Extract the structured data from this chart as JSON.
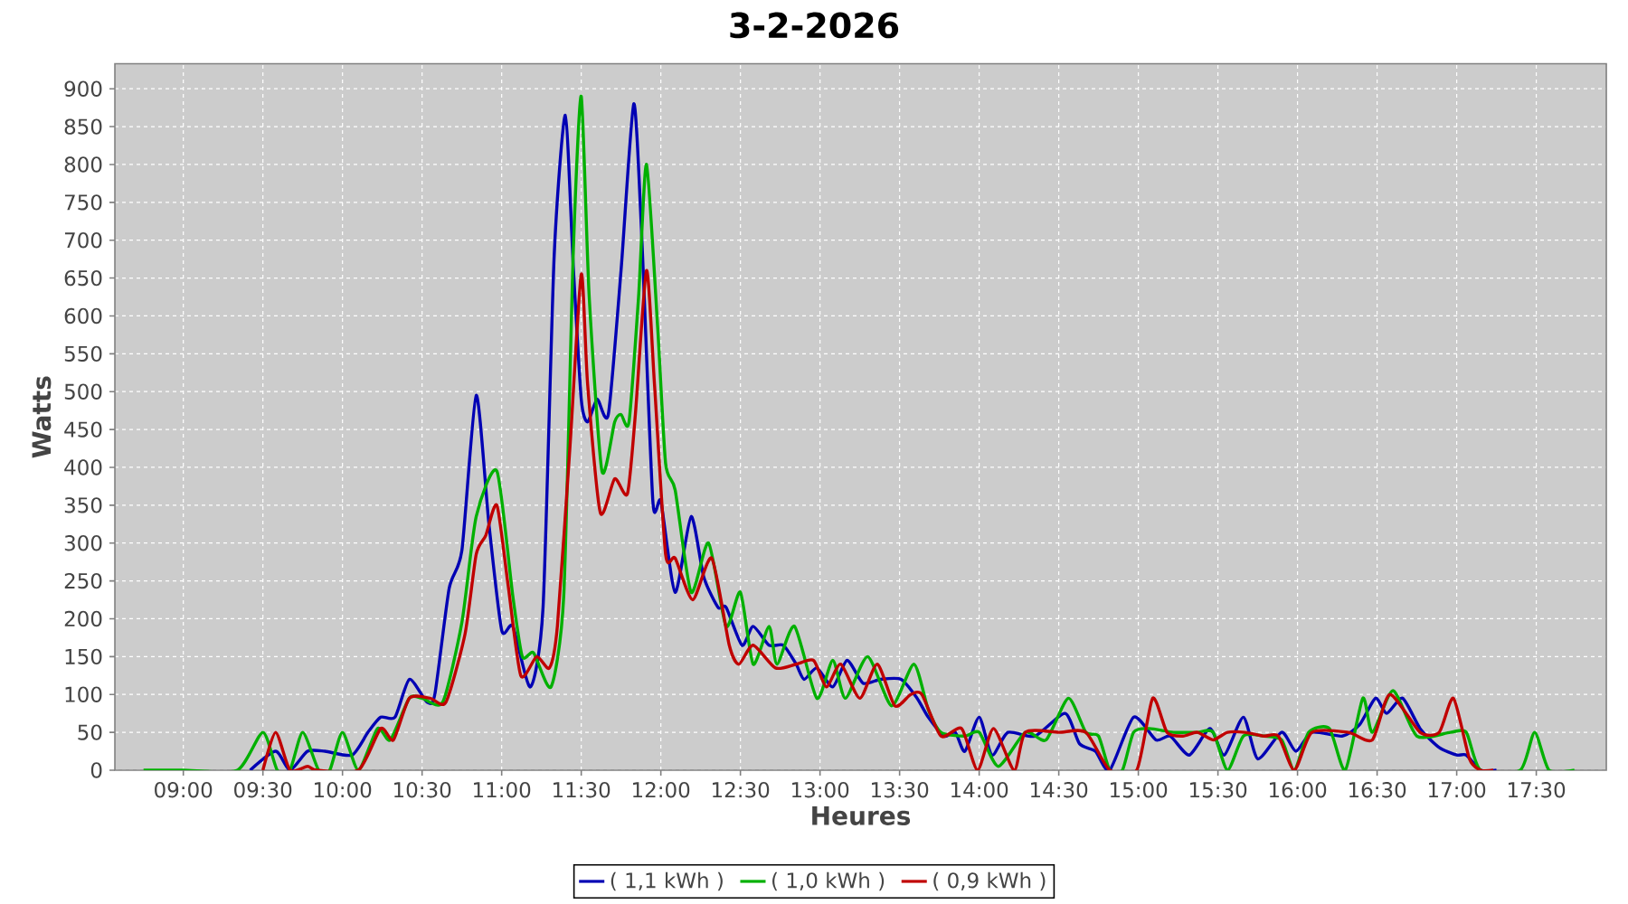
{
  "chart_data": {
    "type": "line",
    "title": "3-2-2026",
    "xlabel": "Heures",
    "ylabel": "Watts",
    "xlim": [
      8.57,
      17.94
    ],
    "ylim": [
      0,
      933
    ],
    "xticks": [
      {
        "value": 9,
        "label": "09:00"
      },
      {
        "value": 9.5,
        "label": "09:30"
      },
      {
        "value": 10,
        "label": "10:00"
      },
      {
        "value": 10.5,
        "label": "10:30"
      },
      {
        "value": 11,
        "label": "11:00"
      },
      {
        "value": 11.5,
        "label": "11:30"
      },
      {
        "value": 12,
        "label": "12:00"
      },
      {
        "value": 12.5,
        "label": "12:30"
      },
      {
        "value": 13,
        "label": "13:00"
      },
      {
        "value": 13.5,
        "label": "13:30"
      },
      {
        "value": 14,
        "label": "14:00"
      },
      {
        "value": 14.5,
        "label": "14:30"
      },
      {
        "value": 15,
        "label": "15:00"
      },
      {
        "value": 15.5,
        "label": "15:30"
      },
      {
        "value": 16,
        "label": "16:00"
      },
      {
        "value": 16.5,
        "label": "16:30"
      },
      {
        "value": 17,
        "label": "17:00"
      },
      {
        "value": 17.5,
        "label": "17:30"
      }
    ],
    "yticks": [
      0,
      50,
      100,
      150,
      200,
      250,
      300,
      350,
      400,
      450,
      500,
      550,
      600,
      650,
      700,
      750,
      800,
      850,
      900
    ],
    "grid": true,
    "legend": "bottom",
    "series": [
      {
        "name": "( 1,1 kWh )",
        "color": "#0000b4",
        "x": [
          9.42,
          9.58,
          9.67,
          9.78,
          9.89,
          10.06,
          10.16,
          10.24,
          10.33,
          10.42,
          10.53,
          10.58,
          10.67,
          10.75,
          10.84,
          10.92,
          11.0,
          11.07,
          11.18,
          11.26,
          11.33,
          11.4,
          11.45,
          11.5,
          11.54,
          11.6,
          11.67,
          11.75,
          11.83,
          11.88,
          11.95,
          12.0,
          12.09,
          12.19,
          12.27,
          12.36,
          12.41,
          12.51,
          12.58,
          12.68,
          12.77,
          12.85,
          12.9,
          12.98,
          13.08,
          13.17,
          13.27,
          13.38,
          13.51,
          13.61,
          13.68,
          13.78,
          13.85,
          13.91,
          14.0,
          14.08,
          14.18,
          14.35,
          14.54,
          14.63,
          14.73,
          14.82,
          14.97,
          15.11,
          15.2,
          15.32,
          15.45,
          15.54,
          15.66,
          15.75,
          15.9,
          15.99,
          16.09,
          16.28,
          16.39,
          16.49,
          16.56,
          16.66,
          16.77,
          16.89,
          17.0,
          17.06,
          17.15,
          17.25
        ],
        "values": [
          0,
          25,
          0,
          25,
          25,
          20,
          50,
          70,
          70,
          120,
          90,
          100,
          240,
          290,
          495,
          325,
          185,
          190,
          110,
          215,
          680,
          865,
          665,
          490,
          460,
          490,
          470,
          660,
          880,
          705,
          355,
          355,
          235,
          335,
          255,
          215,
          215,
          165,
          190,
          165,
          165,
          140,
          120,
          135,
          110,
          145,
          115,
          120,
          120,
          95,
          70,
          45,
          50,
          25,
          70,
          20,
          50,
          45,
          75,
          35,
          25,
          0,
          70,
          40,
          45,
          20,
          55,
          20,
          70,
          15,
          50,
          25,
          50,
          45,
          60,
          95,
          75,
          95,
          55,
          30,
          20,
          20,
          0,
          0
        ]
      },
      {
        "name": "( 1,0 kWh )",
        "color": "#00b000",
        "x": [
          8.75,
          9.0,
          9.34,
          9.5,
          9.59,
          9.67,
          9.75,
          9.85,
          9.92,
          10.0,
          10.1,
          10.22,
          10.3,
          10.42,
          10.5,
          10.63,
          10.75,
          10.84,
          10.97,
          11.07,
          11.13,
          11.2,
          11.31,
          11.39,
          11.45,
          11.5,
          11.55,
          11.63,
          11.71,
          11.75,
          11.8,
          11.86,
          11.91,
          11.98,
          12.03,
          12.09,
          12.19,
          12.3,
          12.41,
          12.5,
          12.58,
          12.68,
          12.73,
          12.84,
          12.98,
          13.08,
          13.16,
          13.3,
          13.45,
          13.59,
          13.68,
          13.76,
          13.91,
          14.0,
          14.12,
          14.29,
          14.42,
          14.56,
          14.67,
          14.75,
          14.82,
          14.9,
          14.97,
          15.07,
          15.22,
          15.37,
          15.47,
          15.56,
          15.66,
          15.79,
          15.9,
          15.98,
          16.07,
          16.2,
          16.3,
          16.41,
          16.47,
          16.6,
          16.75,
          16.96,
          17.06,
          17.15,
          17.4,
          17.49,
          17.58,
          17.74
        ],
        "values": [
          0,
          0,
          0,
          50,
          0,
          0,
          50,
          0,
          0,
          50,
          0,
          55,
          40,
          95,
          95,
          90,
          195,
          335,
          395,
          230,
          150,
          155,
          110,
          230,
          685,
          890,
          625,
          395,
          460,
          470,
          460,
          625,
          800,
          585,
          405,
          370,
          235,
          300,
          190,
          235,
          140,
          190,
          140,
          190,
          95,
          145,
          95,
          150,
          85,
          140,
          80,
          50,
          45,
          50,
          5,
          50,
          40,
          95,
          50,
          45,
          0,
          0,
          50,
          55,
          50,
          50,
          50,
          0,
          45,
          45,
          40,
          0,
          50,
          55,
          0,
          95,
          50,
          105,
          45,
          50,
          50,
          0,
          0,
          50,
          0,
          0
        ]
      },
      {
        "name": "( 0,9 kWh )",
        "color": "#c00000",
        "x": [
          9.5,
          9.58,
          9.67,
          9.78,
          9.84,
          10.1,
          10.24,
          10.32,
          10.42,
          10.55,
          10.65,
          10.77,
          10.84,
          10.9,
          10.97,
          11.04,
          11.12,
          11.22,
          11.3,
          11.35,
          11.43,
          11.5,
          11.54,
          11.62,
          11.71,
          11.79,
          11.84,
          11.91,
          11.96,
          12.03,
          12.09,
          12.2,
          12.32,
          12.43,
          12.49,
          12.58,
          12.72,
          12.85,
          12.96,
          13.04,
          13.13,
          13.25,
          13.36,
          13.47,
          13.57,
          13.64,
          13.76,
          13.89,
          13.99,
          14.09,
          14.22,
          14.29,
          14.5,
          14.67,
          14.82,
          14.99,
          15.09,
          15.18,
          15.28,
          15.37,
          15.47,
          15.56,
          15.67,
          15.79,
          15.88,
          15.98,
          16.09,
          16.32,
          16.47,
          16.58,
          16.77,
          16.89,
          16.98,
          17.08,
          17.15,
          17.23
        ],
        "values": [
          0,
          50,
          0,
          5,
          0,
          0,
          55,
          40,
          95,
          95,
          90,
          180,
          285,
          310,
          350,
          245,
          125,
          150,
          135,
          190,
          430,
          655,
          510,
          340,
          385,
          365,
          470,
          660,
          510,
          285,
          280,
          225,
          280,
          165,
          140,
          165,
          135,
          140,
          145,
          110,
          140,
          95,
          140,
          85,
          100,
          100,
          45,
          55,
          0,
          55,
          0,
          50,
          50,
          50,
          0,
          0,
          95,
          50,
          45,
          50,
          40,
          50,
          50,
          45,
          45,
          0,
          50,
          50,
          40,
          100,
          50,
          50,
          95,
          15,
          0,
          0
        ]
      }
    ]
  }
}
